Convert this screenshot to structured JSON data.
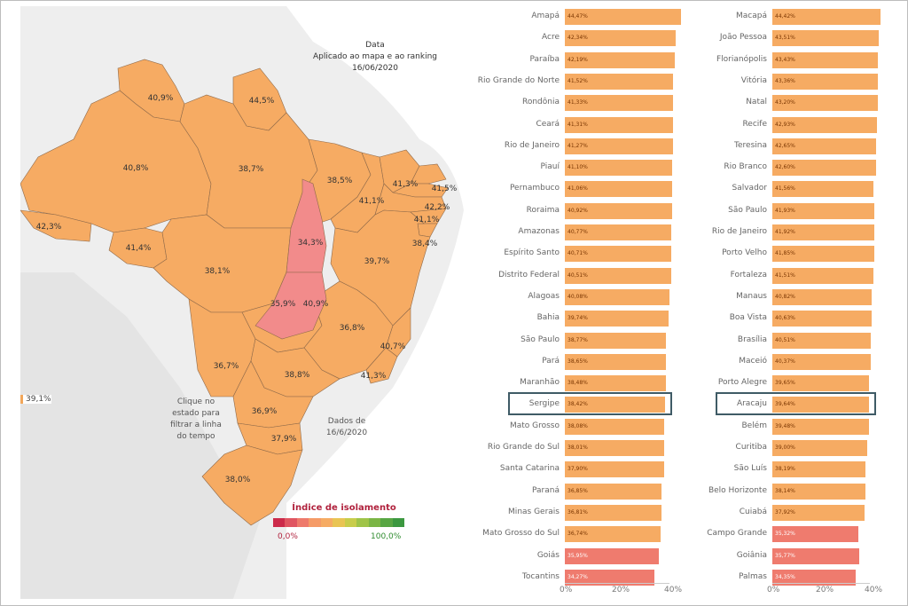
{
  "colors": {
    "orange": "#f6ab63",
    "red": "#ef7b6e",
    "pink_state": "#f28b8b",
    "ocean": "#e6e6e6",
    "land": "#eeeeee"
  },
  "map": {
    "header_title": "Data",
    "header_subtitle": "Aplicado ao mapa e ao ranking",
    "header_date": "16/06/2020",
    "click_hint": "Clique no estado para filtrar a linha do tempo",
    "data_date": "Dados de 16/6/2020",
    "outside_label": "39,1%",
    "state_labels": [
      "40,9%",
      "44,5%",
      "40,8%",
      "38,7%",
      "38,5%",
      "41,3%",
      "41,5%",
      "42,3%",
      "41,1%",
      "42,2%",
      "41,1%",
      "34,3%",
      "38,4%",
      "41,4%",
      "39,7%",
      "38,1%",
      "35,9%",
      "40,9%",
      "36,8%",
      "40,7%",
      "36,7%",
      "38,8%",
      "41,3%",
      "36,9%",
      "37,9%",
      "38,0%"
    ],
    "legend_title": "Índice de isolamento",
    "legend_min": "0,0%",
    "legend_max": "100,0%",
    "legend_colors": [
      "#cc2a4a",
      "#e05561",
      "#ee7a6b",
      "#f59b67",
      "#f6ab63",
      "#e9c453",
      "#c8cd4b",
      "#9fc448",
      "#7bb545",
      "#58a643",
      "#3c9840"
    ]
  },
  "chart_data": [
    {
      "type": "bar",
      "orientation": "horizontal",
      "xlim": [
        0,
        40
      ],
      "x_ticks": [
        "0%",
        "20%",
        "40%"
      ],
      "highlighted": "Sergipe",
      "categories": [
        "Amapá",
        "Acre",
        "Paraíba",
        "Rio Grande do Norte",
        "Rondônia",
        "Ceará",
        "Rio de Janeiro",
        "Piauí",
        "Pernambuco",
        "Roraima",
        "Amazonas",
        "Espírito Santo",
        "Distrito Federal",
        "Alagoas",
        "Bahia",
        "São Paulo",
        "Pará",
        "Maranhão",
        "Sergipe",
        "Mato Grosso",
        "Rio Grande do Sul",
        "Santa Catarina",
        "Paraná",
        "Minas Gerais",
        "Mato Grosso do Sul",
        "Goiás",
        "Tocantins"
      ],
      "values": [
        44.47,
        42.34,
        42.19,
        41.52,
        41.33,
        41.31,
        41.27,
        41.1,
        41.06,
        40.92,
        40.77,
        40.71,
        40.51,
        40.08,
        39.74,
        38.77,
        38.65,
        38.48,
        38.42,
        38.08,
        38.01,
        37.9,
        36.85,
        36.81,
        36.74,
        35.95,
        34.27
      ],
      "value_labels": [
        "44,47%",
        "42,34%",
        "42,19%",
        "41,52%",
        "41,33%",
        "41,31%",
        "41,27%",
        "41,10%",
        "41,06%",
        "40,92%",
        "40,77%",
        "40,71%",
        "40,51%",
        "40,08%",
        "39,74%",
        "38,77%",
        "38,65%",
        "38,48%",
        "38,42%",
        "38,08%",
        "38,01%",
        "37,90%",
        "36,85%",
        "36,81%",
        "36,74%",
        "35,95%",
        "34,27%"
      ]
    },
    {
      "type": "bar",
      "orientation": "horizontal",
      "xlim": [
        0,
        40
      ],
      "x_ticks": [
        "0%",
        "20%",
        "40%"
      ],
      "highlighted": "Aracaju",
      "categories": [
        "Macapá",
        "João Pessoa",
        "Florianópolis",
        "Vitória",
        "Natal",
        "Recife",
        "Teresina",
        "Rio Branco",
        "Salvador",
        "São Paulo",
        "Rio de Janeiro",
        "Porto Velho",
        "Fortaleza",
        "Manaus",
        "Boa Vista",
        "Brasília",
        "Maceió",
        "Porto Alegre",
        "Aracaju",
        "Belém",
        "Curitiba",
        "São Luís",
        "Belo Horizonte",
        "Cuiabá",
        "Campo Grande",
        "Goiânia",
        "Palmas"
      ],
      "values": [
        44.42,
        43.51,
        43.43,
        43.36,
        43.2,
        42.93,
        42.65,
        42.6,
        41.56,
        41.93,
        41.92,
        41.85,
        41.51,
        40.82,
        40.63,
        40.51,
        40.37,
        39.65,
        39.64,
        39.48,
        39.0,
        38.19,
        38.14,
        37.92,
        35.32,
        35.77,
        34.35
      ],
      "value_labels": [
        "44,42%",
        "43,51%",
        "43,43%",
        "43,36%",
        "43,20%",
        "42,93%",
        "42,65%",
        "42,60%",
        "41,56%",
        "41,93%",
        "41,92%",
        "41,85%",
        "41,51%",
        "40,82%",
        "40,63%",
        "40,51%",
        "40,37%",
        "39,65%",
        "39,64%",
        "39,48%",
        "39,00%",
        "38,19%",
        "38,14%",
        "37,92%",
        "35,32%",
        "35,77%",
        "34,35%"
      ]
    }
  ]
}
